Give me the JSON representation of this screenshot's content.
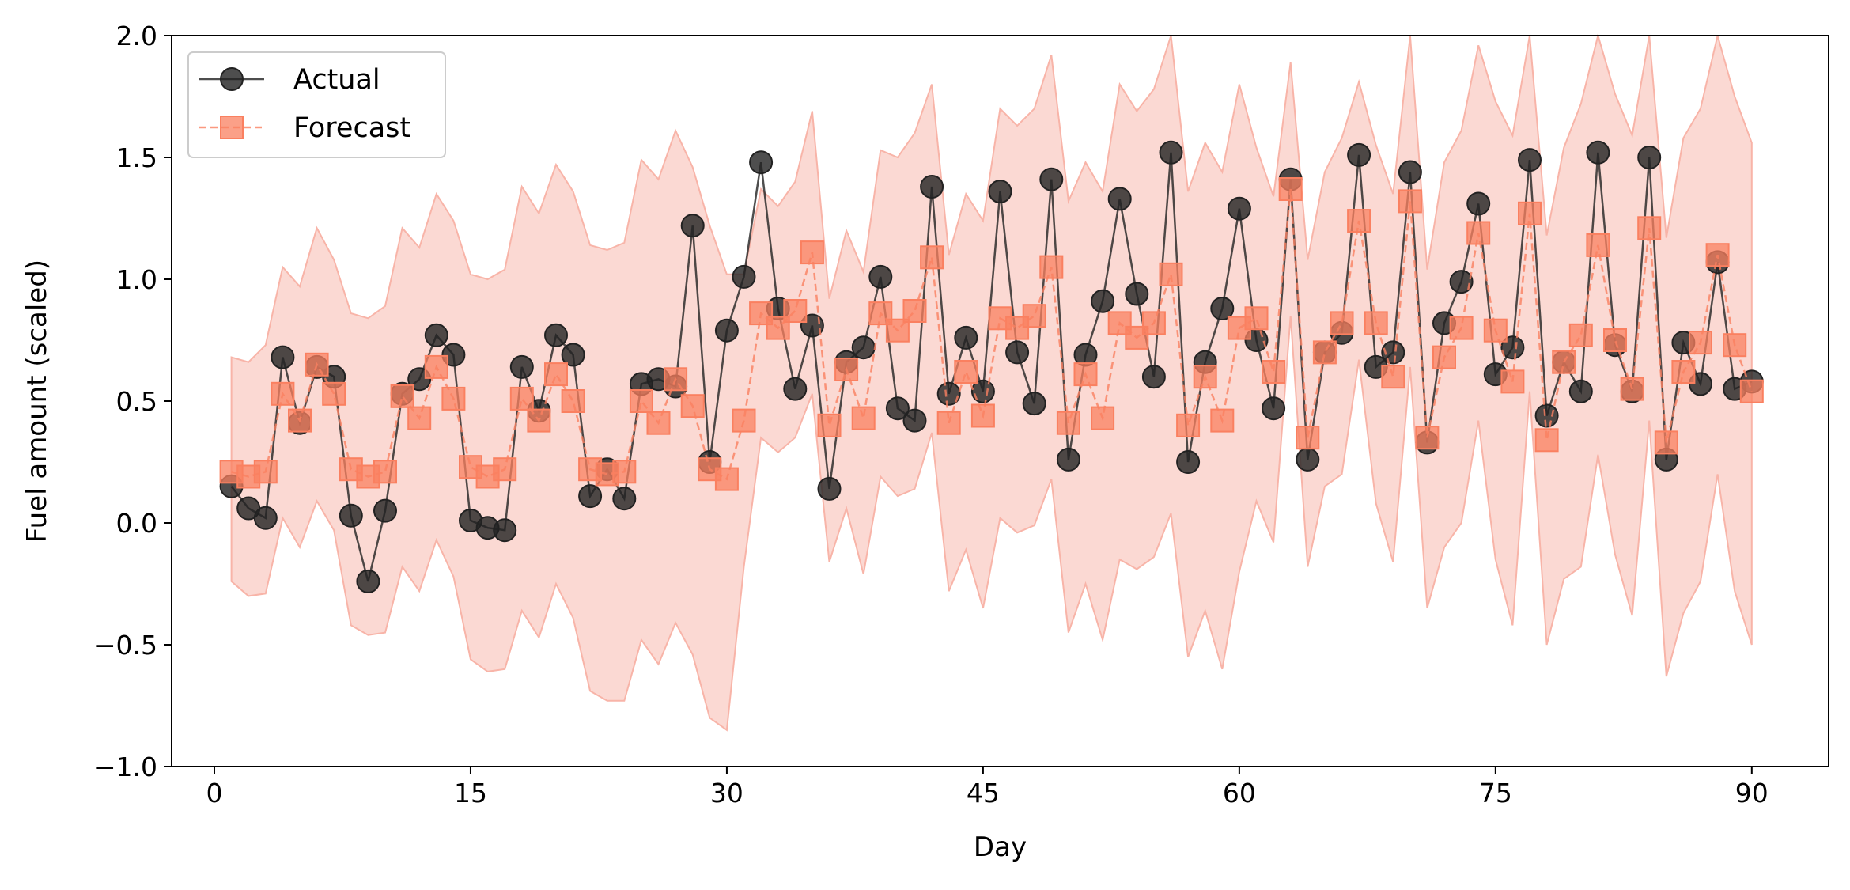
{
  "chart_data": {
    "type": "line",
    "title": "",
    "xlabel": "Day",
    "ylabel": "Fuel amount (scaled)",
    "xlim": [
      -2.5,
      94.5
    ],
    "ylim": [
      -1.0,
      2.0
    ],
    "xticks": [
      0,
      15,
      30,
      45,
      60,
      75,
      90
    ],
    "yticks": [
      -1.0,
      -0.5,
      0.0,
      0.5,
      1.0,
      1.5,
      2.0
    ],
    "ytick_labels": [
      "−1.0",
      "−0.5",
      "0.0",
      "0.5",
      "1.0",
      "1.5",
      "2.0"
    ],
    "legend_position": "top-left",
    "x": [
      1,
      2,
      3,
      4,
      5,
      6,
      7,
      8,
      9,
      10,
      11,
      12,
      13,
      14,
      15,
      16,
      17,
      18,
      19,
      20,
      21,
      22,
      23,
      24,
      25,
      26,
      27,
      28,
      29,
      30,
      31,
      32,
      33,
      34,
      35,
      36,
      37,
      38,
      39,
      40,
      41,
      42,
      43,
      44,
      45,
      46,
      47,
      48,
      49,
      50,
      51,
      52,
      53,
      54,
      55,
      56,
      57,
      58,
      59,
      60,
      61,
      62,
      63,
      64,
      65,
      66,
      67,
      68,
      69,
      70,
      71,
      72,
      73,
      74,
      75,
      76,
      77,
      78,
      79,
      80,
      81,
      82,
      83,
      84,
      85,
      86,
      87,
      88,
      89,
      90
    ],
    "series": [
      {
        "name": "Actual",
        "color": "#222222",
        "marker": "circle",
        "linestyle": "solid",
        "values": [
          0.15,
          0.06,
          0.02,
          0.68,
          0.41,
          0.64,
          0.6,
          0.03,
          -0.24,
          0.05,
          0.53,
          0.59,
          0.77,
          0.69,
          0.01,
          -0.02,
          -0.03,
          0.64,
          0.46,
          0.77,
          0.69,
          0.11,
          0.22,
          0.1,
          0.57,
          0.59,
          0.56,
          1.22,
          0.25,
          0.79,
          1.01,
          1.48,
          0.88,
          0.55,
          0.81,
          0.14,
          0.66,
          0.72,
          1.01,
          0.47,
          0.42,
          1.38,
          0.53,
          0.76,
          0.54,
          1.36,
          0.7,
          0.49,
          1.41,
          0.26,
          0.69,
          0.91,
          1.33,
          0.94,
          0.6,
          1.52,
          0.25,
          0.66,
          0.88,
          1.29,
          0.75,
          0.47,
          1.41,
          0.26,
          0.7,
          0.78,
          1.51,
          0.64,
          0.7,
          1.44,
          0.33,
          0.82,
          0.99,
          1.31,
          0.61,
          0.72,
          1.49,
          0.44,
          0.66,
          0.54,
          1.52,
          0.73,
          0.54,
          1.5,
          0.26,
          0.74,
          0.57,
          1.07,
          0.55,
          0.58
        ]
      },
      {
        "name": "Forecast",
        "color": "#fa8060",
        "marker": "square",
        "linestyle": "dashed",
        "values": [
          0.21,
          0.19,
          0.21,
          0.53,
          0.42,
          0.65,
          0.53,
          0.22,
          0.19,
          0.21,
          0.52,
          0.43,
          0.64,
          0.51,
          0.23,
          0.19,
          0.22,
          0.51,
          0.42,
          0.61,
          0.5,
          0.22,
          0.2,
          0.21,
          0.5,
          0.41,
          0.59,
          0.48,
          0.22,
          0.18,
          0.42,
          0.86,
          0.8,
          0.87,
          1.11,
          0.4,
          0.63,
          0.43,
          0.86,
          0.79,
          0.87,
          1.09,
          0.41,
          0.62,
          0.44,
          0.84,
          0.8,
          0.85,
          1.05,
          0.41,
          0.61,
          0.43,
          0.82,
          0.76,
          0.82,
          1.02,
          0.4,
          0.6,
          0.42,
          0.8,
          0.84,
          0.62,
          1.37,
          0.35,
          0.7,
          0.82,
          1.24,
          0.82,
          0.6,
          1.32,
          0.35,
          0.68,
          0.8,
          1.19,
          0.79,
          0.58,
          1.27,
          0.34,
          0.66,
          0.77,
          1.14,
          0.75,
          0.55,
          1.21,
          0.33,
          0.62,
          0.74,
          1.1,
          0.73,
          0.54
        ]
      }
    ],
    "interval": {
      "color": "#f8b4a8",
      "upper": [
        0.68,
        0.66,
        0.73,
        1.05,
        0.97,
        1.21,
        1.08,
        0.86,
        0.84,
        0.89,
        1.21,
        1.13,
        1.35,
        1.24,
        1.02,
        1.0,
        1.04,
        1.38,
        1.27,
        1.47,
        1.36,
        1.14,
        1.12,
        1.15,
        1.49,
        1.41,
        1.61,
        1.46,
        1.22,
        1.02,
        1.02,
        1.37,
        1.3,
        1.4,
        1.69,
        0.92,
        1.2,
        1.03,
        1.53,
        1.5,
        1.6,
        1.8,
        1.1,
        1.35,
        1.24,
        1.7,
        1.63,
        1.7,
        1.92,
        1.32,
        1.48,
        1.36,
        1.8,
        1.69,
        1.78,
        2.0,
        1.36,
        1.56,
        1.44,
        1.8,
        1.54,
        1.34,
        1.89,
        1.08,
        1.44,
        1.58,
        1.81,
        1.55,
        1.35,
        2.0,
        1.04,
        1.48,
        1.61,
        1.96,
        1.73,
        1.59,
        2.0,
        1.18,
        1.54,
        1.72,
        2.0,
        1.76,
        1.59,
        2.0,
        1.17,
        1.58,
        1.7,
        2.0,
        1.75,
        1.56
      ],
      "lower": [
        -0.24,
        -0.3,
        -0.29,
        0.02,
        -0.1,
        0.09,
        -0.03,
        -0.42,
        -0.46,
        -0.45,
        -0.18,
        -0.28,
        -0.07,
        -0.22,
        -0.56,
        -0.61,
        -0.6,
        -0.36,
        -0.47,
        -0.25,
        -0.39,
        -0.69,
        -0.73,
        -0.73,
        -0.48,
        -0.58,
        -0.41,
        -0.54,
        -0.8,
        -0.85,
        -0.18,
        0.35,
        0.29,
        0.35,
        0.53,
        -0.16,
        0.06,
        -0.21,
        0.19,
        0.11,
        0.14,
        0.37,
        -0.28,
        -0.11,
        -0.35,
        0.02,
        -0.04,
        -0.01,
        0.18,
        -0.45,
        -0.25,
        -0.48,
        -0.15,
        -0.19,
        -0.14,
        0.04,
        -0.55,
        -0.36,
        -0.6,
        -0.2,
        0.09,
        -0.08,
        0.85,
        -0.18,
        0.15,
        0.2,
        0.67,
        0.08,
        -0.16,
        0.64,
        -0.35,
        -0.1,
        0.0,
        0.42,
        -0.15,
        -0.42,
        0.54,
        -0.5,
        -0.23,
        -0.18,
        0.28,
        -0.13,
        -0.38,
        0.42,
        -0.63,
        -0.37,
        -0.24,
        0.2,
        -0.28,
        -0.5
      ]
    }
  }
}
